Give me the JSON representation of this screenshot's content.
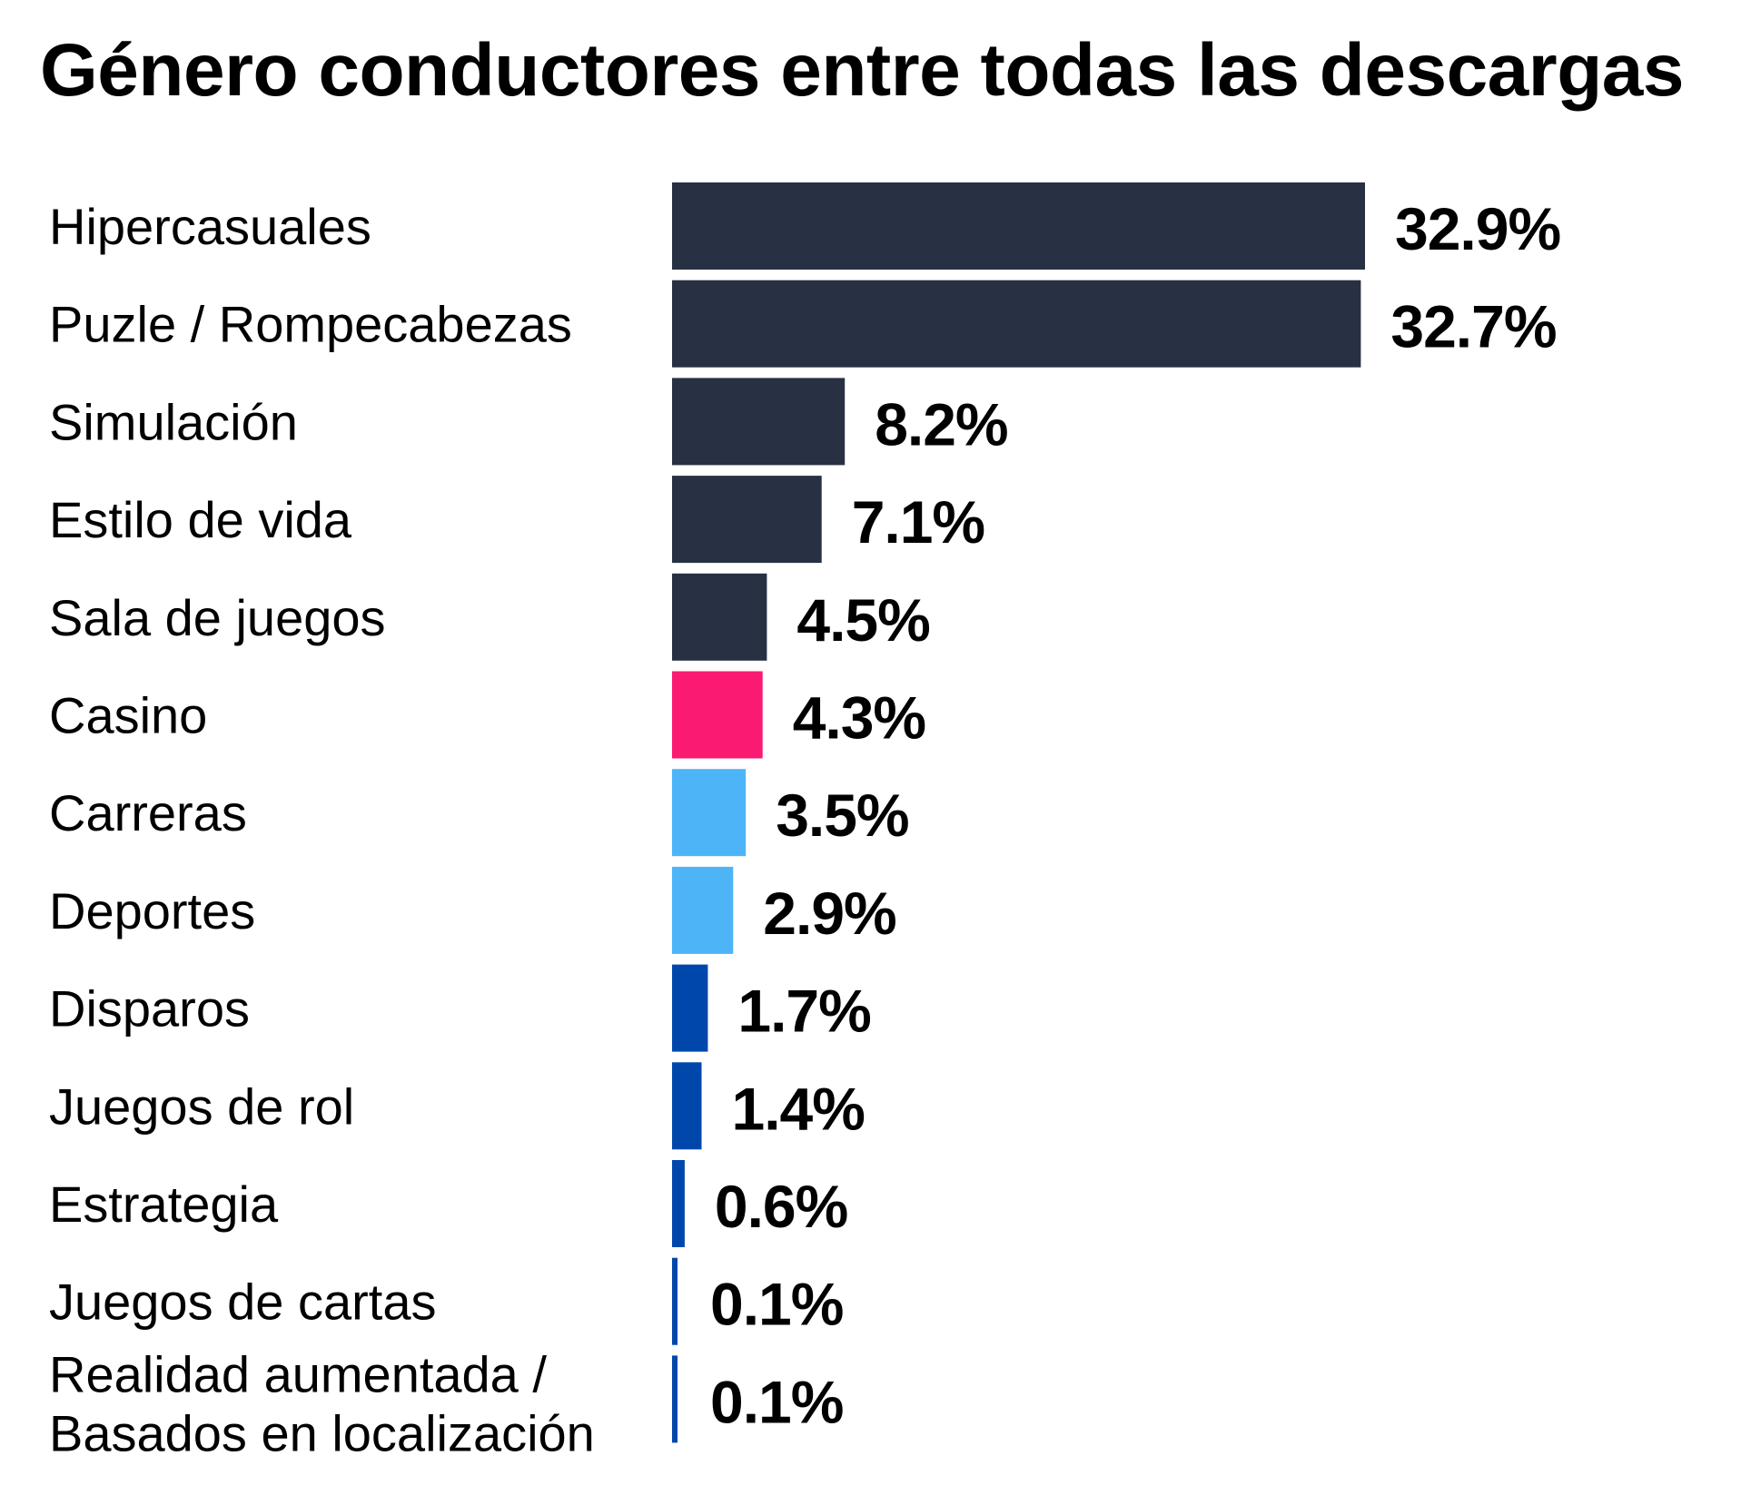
{
  "chart_data": {
    "type": "bar",
    "orientation": "horizontal",
    "title": "Género conductores entre todas las descargas",
    "xlabel": "",
    "ylabel": "",
    "value_suffix": "%",
    "xlim": [
      0,
      32.9
    ],
    "grid": false,
    "legend": "none",
    "categories": [
      [
        "Hipercasuales"
      ],
      [
        "Puzle / Rompecabezas"
      ],
      [
        "Simulación"
      ],
      [
        "Estilo de vida"
      ],
      [
        "Sala de juegos"
      ],
      [
        "Casino"
      ],
      [
        "Carreras"
      ],
      [
        "Deportes"
      ],
      [
        "Disparos"
      ],
      [
        "Juegos de rol"
      ],
      [
        "Estrategia"
      ],
      [
        "Juegos de cartas"
      ],
      [
        "Realidad aumentada /",
        "Basados en localización"
      ]
    ],
    "values": [
      32.9,
      32.7,
      8.2,
      7.1,
      4.5,
      4.3,
      3.5,
      2.9,
      1.7,
      1.4,
      0.6,
      0.1,
      0.1
    ],
    "value_labels": [
      "32.9%",
      "32.7%",
      "8.2%",
      "7.1%",
      "4.5%",
      "4.3%",
      "3.5%",
      "2.9%",
      "1.7%",
      "1.4%",
      "0.6%",
      "0.1%",
      "0.1%"
    ],
    "bar_color_groups": [
      "navy",
      "navy",
      "navy",
      "navy",
      "navy",
      "pink",
      "light-blue",
      "light-blue",
      "blue",
      "blue",
      "blue",
      "blue",
      "blue"
    ]
  },
  "colors": {
    "navy": "#283043",
    "pink": "#FA1A72",
    "light-blue": "#4DB5F7",
    "blue": "#0047AB",
    "text": "#000000",
    "background": "#FFFFFF"
  }
}
